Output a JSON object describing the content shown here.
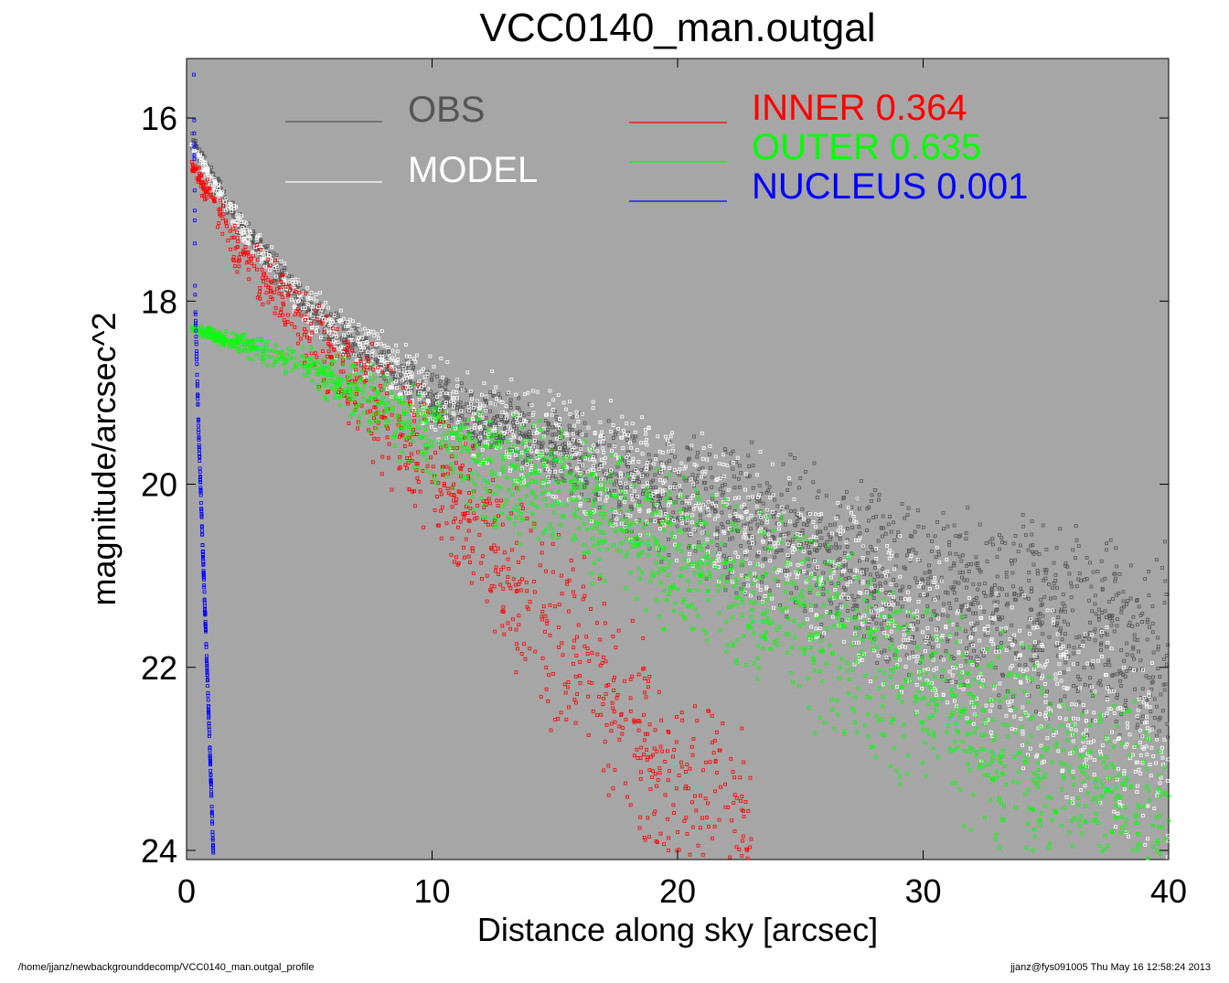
{
  "chart_data": {
    "type": "scatter",
    "title": "VCC0140_man.outgal",
    "xlabel": "Distance along sky [arcsec]",
    "ylabel": "magnitude/arcsec^2",
    "xlim": [
      0,
      40
    ],
    "ylim": [
      24.1,
      15.35
    ],
    "y_inverted": true,
    "background": "#a6a6a6",
    "x_ticks": [
      0,
      10,
      20,
      30,
      40
    ],
    "x_tick_labels": [
      "0",
      "10",
      "20",
      "30",
      "40"
    ],
    "y_ticks": [
      16,
      18,
      20,
      22,
      24
    ],
    "y_tick_labels": [
      "16",
      "18",
      "20",
      "22",
      "24"
    ],
    "legend_left": [
      {
        "label": "OBS",
        "color": "#555555",
        "text_color": "#555555"
      },
      {
        "label": "MODEL",
        "color": "#ffffff",
        "text_color": "#ffffff"
      }
    ],
    "legend_right": [
      {
        "label": "INNER",
        "value": "0.364",
        "color": "#ff0000"
      },
      {
        "label": "OUTER",
        "value": "0.635",
        "color": "#00ff00"
      },
      {
        "label": "NUCLEUS",
        "value": "0.001",
        "color": "#0000ff"
      }
    ],
    "series": [
      {
        "name": "OBS",
        "color": "#555555",
        "x": [
          0.2,
          2,
          5,
          10,
          15,
          20,
          25,
          30,
          35,
          40
        ],
        "y": [
          16.25,
          17.1,
          18.1,
          19.05,
          19.6,
          20.2,
          20.6,
          21.2,
          21.5,
          21.8
        ],
        "spread": [
          0.1,
          0.15,
          0.2,
          0.3,
          0.5,
          0.8,
          1.0,
          1.1,
          1.2,
          1.3
        ]
      },
      {
        "name": "MODEL",
        "color": "#ffffff",
        "x": [
          0.2,
          2,
          5,
          10,
          15,
          20,
          25,
          30,
          35,
          40
        ],
        "y": [
          16.3,
          17.1,
          18.1,
          19.05,
          19.6,
          20.1,
          20.8,
          21.6,
          22.3,
          23.1
        ],
        "spread": [
          0.05,
          0.2,
          0.3,
          0.5,
          0.7,
          0.9,
          1.0,
          1.1,
          1.2,
          1.2
        ]
      },
      {
        "name": "INNER",
        "color": "#ff0000",
        "x": [
          0.2,
          2,
          5,
          10,
          15,
          20,
          23
        ],
        "y": [
          16.5,
          17.4,
          18.3,
          19.9,
          21.6,
          23.2,
          24.1
        ],
        "spread": [
          0.1,
          0.3,
          0.5,
          0.9,
          1.2,
          1.4,
          1.5
        ]
      },
      {
        "name": "OUTER",
        "color": "#00ff00",
        "x": [
          0.2,
          5,
          10,
          15,
          20,
          25,
          30,
          35,
          40
        ],
        "y": [
          18.3,
          18.7,
          19.5,
          20.1,
          20.8,
          21.5,
          22.3,
          23.1,
          23.8
        ],
        "spread": [
          0.05,
          0.25,
          0.6,
          0.8,
          1.0,
          1.2,
          1.3,
          1.4,
          1.4
        ]
      },
      {
        "name": "NUCLEUS",
        "color": "#0000ff",
        "x": [
          0.3,
          0.35,
          0.5,
          0.7,
          0.9,
          1.1
        ],
        "y": [
          15.4,
          18.0,
          19.5,
          21.0,
          22.5,
          24.1
        ],
        "spread": [
          0.02,
          0.02,
          0.02,
          0.02,
          0.02,
          0.02
        ]
      }
    ]
  },
  "footer": {
    "left": "/home/jjanz/newbackgrounddecomp/VCC0140_man.outgal_profile",
    "right": "jjanz@fys091005  Thu May 16 12:58:24 2013"
  }
}
